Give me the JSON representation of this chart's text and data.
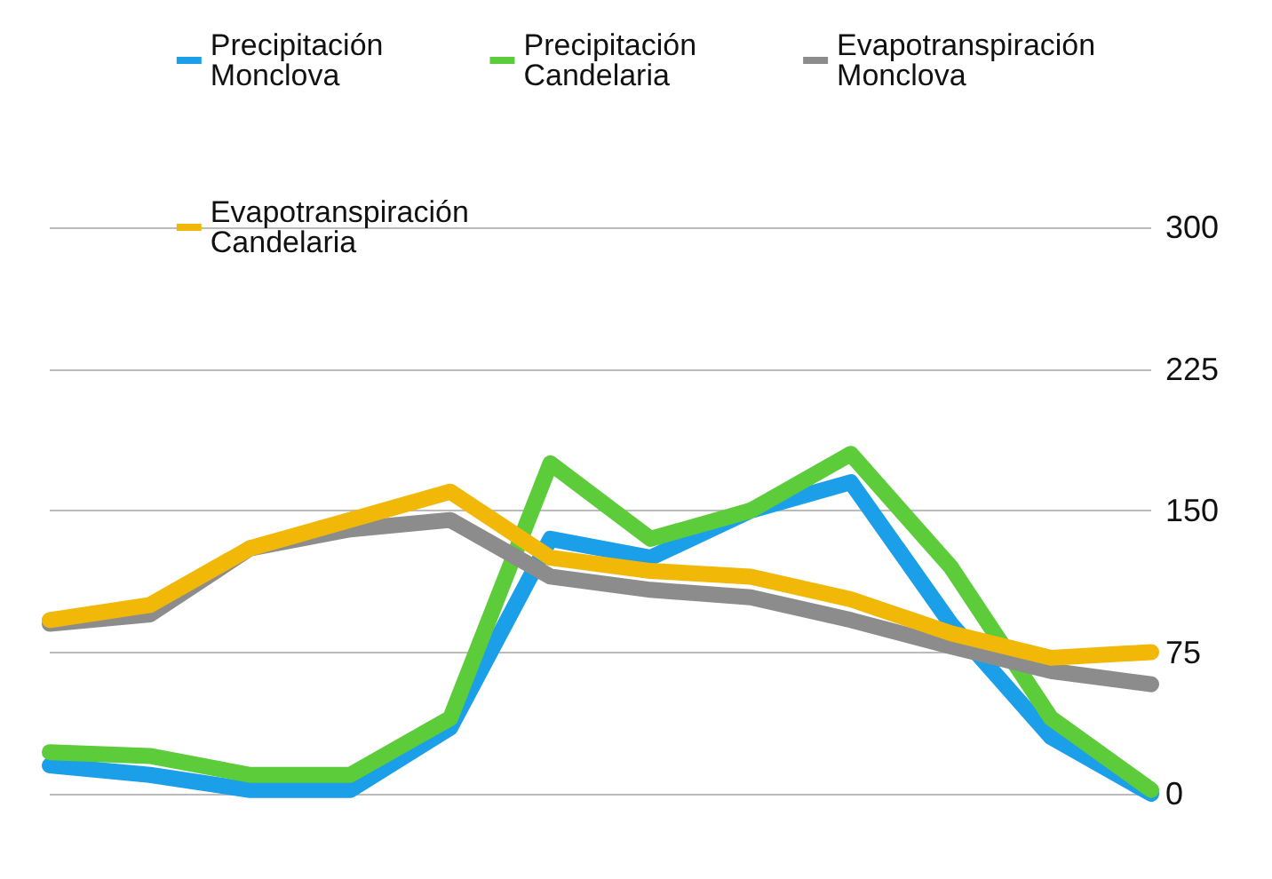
{
  "chart_data": {
    "type": "line",
    "categories": [
      null,
      null,
      null,
      null,
      null,
      null,
      null,
      null,
      null,
      null,
      null,
      null
    ],
    "series": [
      {
        "name": "Precipitación Monclova",
        "color": "#1a9fe8",
        "values": [
          15,
          10,
          2,
          2,
          35,
          135,
          125,
          150,
          165,
          90,
          30,
          0
        ]
      },
      {
        "name": "Precipitación Candelaria",
        "color": "#5ccc3a",
        "values": [
          22,
          20,
          10,
          10,
          40,
          175,
          135,
          150,
          180,
          120,
          40,
          2
        ]
      },
      {
        "name": "Evapotranspiración Monclova",
        "color": "#8c8c8c",
        "values": [
          90,
          95,
          130,
          140,
          145,
          115,
          108,
          104,
          92,
          78,
          65,
          58
        ]
      },
      {
        "name": "Evapotranspiración Candelaria",
        "color": "#f2b807",
        "values": [
          92,
          100,
          130,
          145,
          160,
          125,
          118,
          115,
          103,
          85,
          72,
          75
        ]
      }
    ],
    "ylim": [
      0,
      300
    ],
    "yticks": [
      0,
      75,
      150,
      225,
      300
    ],
    "grid": "y",
    "legend": "top",
    "tick_labels": "y",
    "marker": "none",
    "line_style": "solid"
  }
}
